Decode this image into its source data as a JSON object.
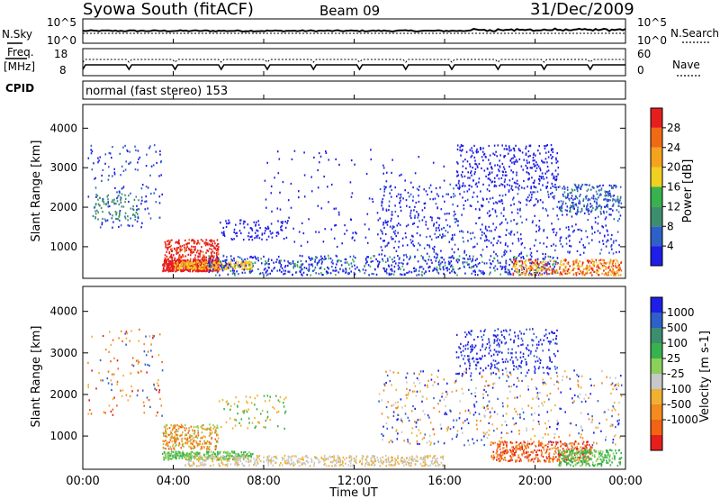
{
  "header": {
    "station": "Syowa South (fitACF)",
    "beam": "Beam 09",
    "date": "31/Dec/2009"
  },
  "panel_noise": {
    "left_label": "N.Sky",
    "right_label": "N.Search",
    "left_ticks": [
      "10^5",
      "10^0"
    ],
    "right_ticks": [
      "10^5",
      "10^0"
    ]
  },
  "panel_freq": {
    "left_label_1": "Freq.",
    "left_label_2": "[MHz]",
    "right_label": "Nave",
    "left_ticks": [
      "18",
      "8"
    ],
    "right_ticks": [
      "60",
      "0"
    ]
  },
  "panel_cpid": {
    "label": "CPID",
    "value": "normal (fast stereo) 153"
  },
  "chart_data": [
    {
      "type": "heatmap",
      "name": "power",
      "ylabel": "Slant Range [km]",
      "y_ticks": [
        "1000",
        "2000",
        "3000",
        "4000"
      ],
      "ylim": [
        200,
        4600
      ],
      "colorbar_label": "Power [dB]",
      "colorbar_ticks": [
        "4",
        "8",
        "12",
        "16",
        "20",
        "24",
        "28"
      ],
      "colors": [
        "#1e1ee6",
        "#2f5fc8",
        "#3c8f6e",
        "#37b24d",
        "#f0d020",
        "#f5a21e",
        "#f06a14",
        "#e61e1e"
      ]
    },
    {
      "type": "heatmap",
      "name": "velocity",
      "ylabel": "Slant Range [km]",
      "y_ticks": [
        "1000",
        "2000",
        "3000",
        "4000"
      ],
      "ylim": [
        200,
        4600
      ],
      "colorbar_label": "Velocity [m s-1]",
      "colorbar_ticks": [
        "1000",
        "500",
        "100",
        "25",
        "-25",
        "-100",
        "-500",
        "-1000"
      ],
      "colors": [
        "#1e1ee6",
        "#2f5fc8",
        "#3c8f6e",
        "#37b24d",
        "#8ccf5a",
        "#c8c8c8",
        "#f0b030",
        "#f58a1e",
        "#f06414",
        "#e61e1e"
      ]
    }
  ],
  "x_axis": {
    "label": "Time UT",
    "ticks": [
      "00:00",
      "04:00",
      "08:00",
      "12:00",
      "16:00",
      "20:00",
      "00:00"
    ]
  }
}
